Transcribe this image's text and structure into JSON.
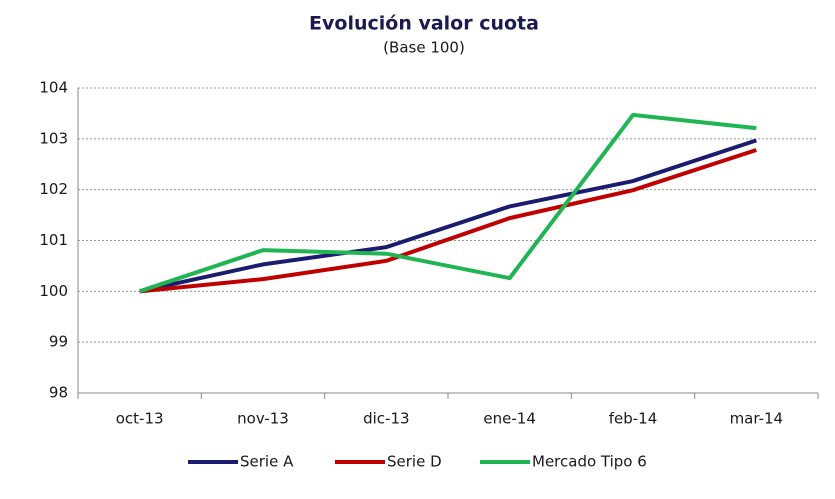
{
  "chart_data": {
    "type": "line",
    "title": "Evolución valor cuota",
    "subtitle": "(Base 100)",
    "categories": [
      "oct-13",
      "nov-13",
      "dic-13",
      "ene-14",
      "feb-14",
      "mar-14"
    ],
    "series": [
      {
        "name": "Serie A",
        "color": "#1b1b6f",
        "values": [
          100,
          100.53,
          100.87,
          101.67,
          102.17,
          102.97
        ]
      },
      {
        "name": "Serie D",
        "color": "#c00000",
        "values": [
          100,
          100.24,
          100.6,
          101.44,
          101.99,
          102.78
        ]
      },
      {
        "name": "Mercado Tipo 6",
        "color": "#1fb552",
        "values": [
          100,
          100.81,
          100.74,
          100.26,
          103.47,
          103.21
        ]
      }
    ],
    "ylim": [
      98,
      104
    ],
    "yticks": [
      98,
      99,
      100,
      101,
      102,
      103,
      104
    ],
    "grid": true,
    "legend": "bottom"
  }
}
